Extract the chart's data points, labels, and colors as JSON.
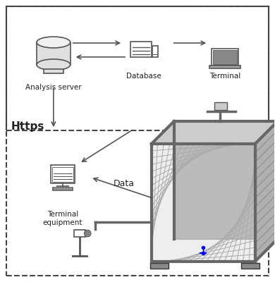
{
  "bg_color": "#ffffff",
  "outer_box_color": "#555555",
  "text_color": "#222222",
  "arrow_color": "#555555",
  "https_text": "Https",
  "data_text": "Data",
  "label_analysis": "Analysis server",
  "label_database": "Database",
  "label_terminal": "Terminal",
  "label_terminal_eq": "Terminal\nequipment",
  "figsize": [
    3.9,
    4.0
  ],
  "dpi": 100
}
